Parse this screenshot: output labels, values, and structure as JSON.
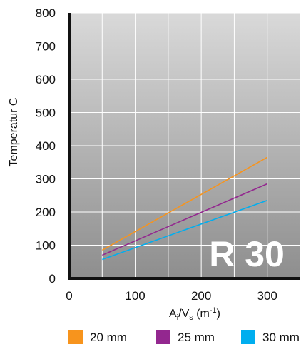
{
  "chart_data": {
    "type": "line",
    "xlabel": "Ai/Vs (m-1)",
    "xlabel_parts": {
      "a": "A",
      "a_sub": "i",
      "slash": "/V",
      "v_sub": "s",
      "unit_open": " (m",
      "unit_sup": "-1",
      "unit_close": ")"
    },
    "ylabel": "Temperatur C",
    "annotation": "R 30",
    "xlim": [
      0,
      350
    ],
    "ylim": [
      0,
      800
    ],
    "x_ticks": [
      "0",
      "100",
      "200",
      "300"
    ],
    "y_ticks": [
      "0",
      "100",
      "200",
      "300",
      "400",
      "500",
      "600",
      "700",
      "800"
    ],
    "grid": true,
    "legend_position": "bottom",
    "series": [
      {
        "name": "20 mm",
        "color": "#f7941d",
        "x": [
          50,
          300
        ],
        "y": [
          85,
          365
        ]
      },
      {
        "name": "25 mm",
        "color": "#93278f",
        "x": [
          50,
          300
        ],
        "y": [
          70,
          285
        ]
      },
      {
        "name": "30 mm",
        "color": "#00aeef",
        "x": [
          50,
          300
        ],
        "y": [
          57,
          235
        ]
      }
    ]
  }
}
